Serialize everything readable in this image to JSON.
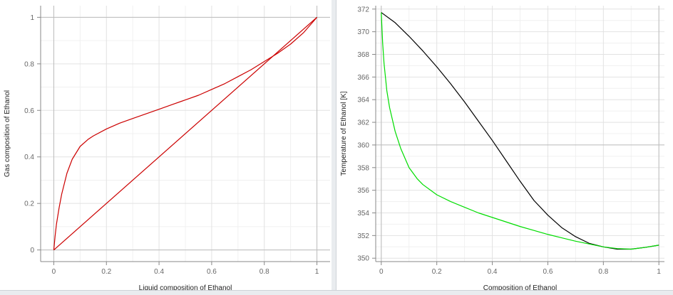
{
  "chart_data": [
    {
      "type": "line",
      "xlabel": "Liquid composition of Ethanol",
      "ylabel": "Gas composition of Ethanol",
      "xlim": [
        -0.05,
        1.05
      ],
      "ylim": [
        -0.05,
        1.05
      ],
      "xticks": [
        "0",
        "0.2",
        "0.4",
        "0.6",
        "0.8",
        "1"
      ],
      "yticks": [
        "0",
        "0.2",
        "0.4",
        "0.6",
        "0.8",
        "1"
      ],
      "grid": true,
      "series": [
        {
          "color": "#cc0000",
          "x": [
            0,
            0.005,
            0.01,
            0.02,
            0.03,
            0.05,
            0.07,
            0.1,
            0.13,
            0.15,
            0.2,
            0.25,
            0.3,
            0.35,
            0.4,
            0.45,
            0.5,
            0.55,
            0.6,
            0.65,
            0.7,
            0.75,
            0.8,
            0.85,
            0.9,
            0.95,
            1.0
          ],
          "y": [
            0,
            0.06,
            0.11,
            0.18,
            0.24,
            0.33,
            0.39,
            0.445,
            0.475,
            0.49,
            0.52,
            0.545,
            0.565,
            0.585,
            0.605,
            0.625,
            0.645,
            0.665,
            0.69,
            0.715,
            0.745,
            0.775,
            0.81,
            0.845,
            0.885,
            0.935,
            1.0
          ]
        },
        {
          "color": "#cc0000",
          "x": [
            0,
            1
          ],
          "y": [
            0,
            1
          ]
        }
      ]
    },
    {
      "type": "line",
      "xlabel": "Composition of Ethanol",
      "ylabel": "Temperature of Ethanol [K]",
      "xlim": [
        -0.02,
        1.02
      ],
      "ylim": [
        349.7,
        372.3
      ],
      "xticks": [
        "0",
        "0.2",
        "0.4",
        "0.6",
        "0.8",
        "1"
      ],
      "yticks": [
        "350",
        "352",
        "354",
        "356",
        "358",
        "360",
        "362",
        "364",
        "366",
        "368",
        "370",
        "372"
      ],
      "grid": true,
      "series": [
        {
          "color": "#000000",
          "x": [
            0,
            0.05,
            0.1,
            0.15,
            0.2,
            0.25,
            0.3,
            0.35,
            0.4,
            0.45,
            0.5,
            0.55,
            0.6,
            0.65,
            0.7,
            0.75,
            0.8,
            0.85,
            0.9,
            0.95,
            1.0
          ],
          "y": [
            371.7,
            370.8,
            369.6,
            368.3,
            366.9,
            365.4,
            363.8,
            362.1,
            360.4,
            358.6,
            356.8,
            355.1,
            353.8,
            352.7,
            351.9,
            351.3,
            351.0,
            350.8,
            350.8,
            350.95,
            351.15
          ]
        },
        {
          "color": "#00dd00",
          "x": [
            0,
            0.005,
            0.01,
            0.02,
            0.03,
            0.05,
            0.07,
            0.1,
            0.13,
            0.15,
            0.2,
            0.25,
            0.3,
            0.35,
            0.4,
            0.45,
            0.5,
            0.55,
            0.6,
            0.65,
            0.7,
            0.75,
            0.8,
            0.85,
            0.9,
            0.95,
            1.0
          ],
          "y": [
            371.7,
            369.0,
            367.2,
            364.8,
            363.3,
            361.2,
            359.7,
            358.0,
            357.0,
            356.5,
            355.6,
            355.0,
            354.5,
            354.0,
            353.6,
            353.2,
            352.8,
            352.45,
            352.1,
            351.8,
            351.5,
            351.25,
            351.0,
            350.85,
            350.8,
            350.95,
            351.15
          ]
        }
      ]
    }
  ]
}
